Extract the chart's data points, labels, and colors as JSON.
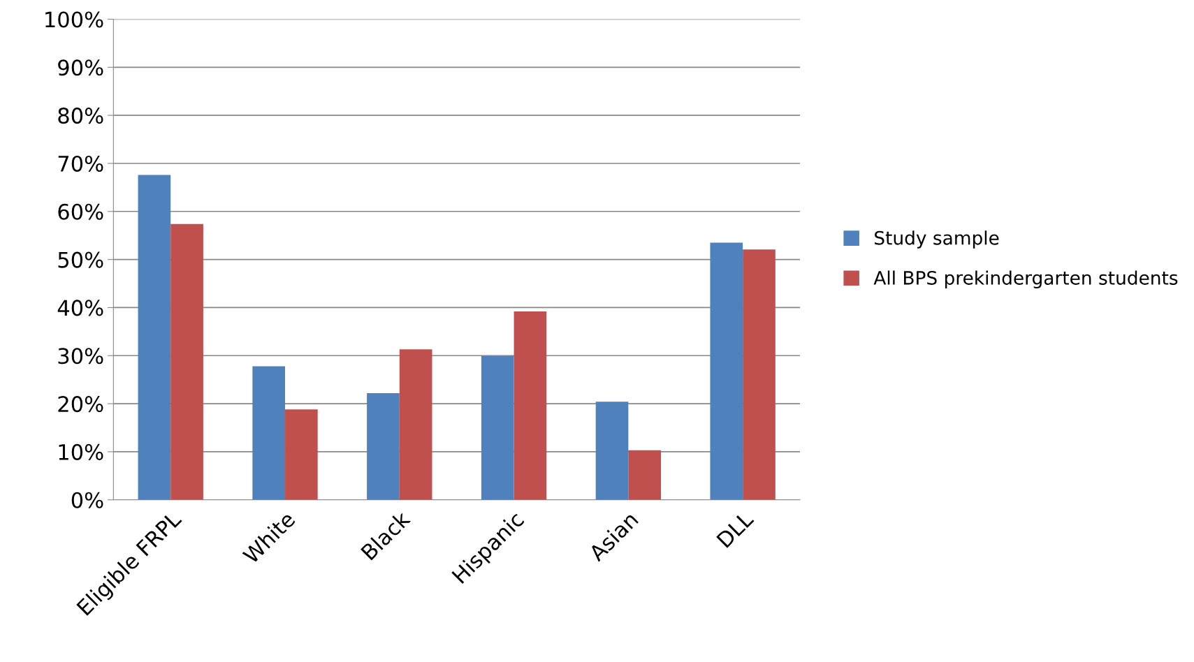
{
  "chart_data": {
    "type": "bar",
    "categories": [
      "Eligible FRPL",
      "White",
      "Black",
      "Hispanic",
      "Asian",
      "DLL"
    ],
    "series": [
      {
        "name": "Study sample",
        "color": "#4f81bd",
        "values": [
          67.6,
          27.8,
          22.2,
          29.9,
          20.4,
          53.5
        ]
      },
      {
        "name": "All BPS prekindergarten students",
        "color": "#c0504d",
        "values": [
          57.4,
          18.8,
          31.3,
          39.2,
          10.3,
          52.1
        ]
      }
    ],
    "ylim": [
      0,
      100
    ],
    "yticks": [
      {
        "value": 0,
        "label": "0%"
      },
      {
        "value": 10,
        "label": "10%"
      },
      {
        "value": 20,
        "label": "20%"
      },
      {
        "value": 30,
        "label": "30%"
      },
      {
        "value": 40,
        "label": "40%"
      },
      {
        "value": 50,
        "label": "50%"
      },
      {
        "value": 60,
        "label": "60%"
      },
      {
        "value": 70,
        "label": "70%"
      },
      {
        "value": 80,
        "label": "80%"
      },
      {
        "value": 90,
        "label": "90%"
      },
      {
        "value": 100,
        "label": "100%"
      }
    ],
    "grid": "y",
    "legend": "right"
  }
}
